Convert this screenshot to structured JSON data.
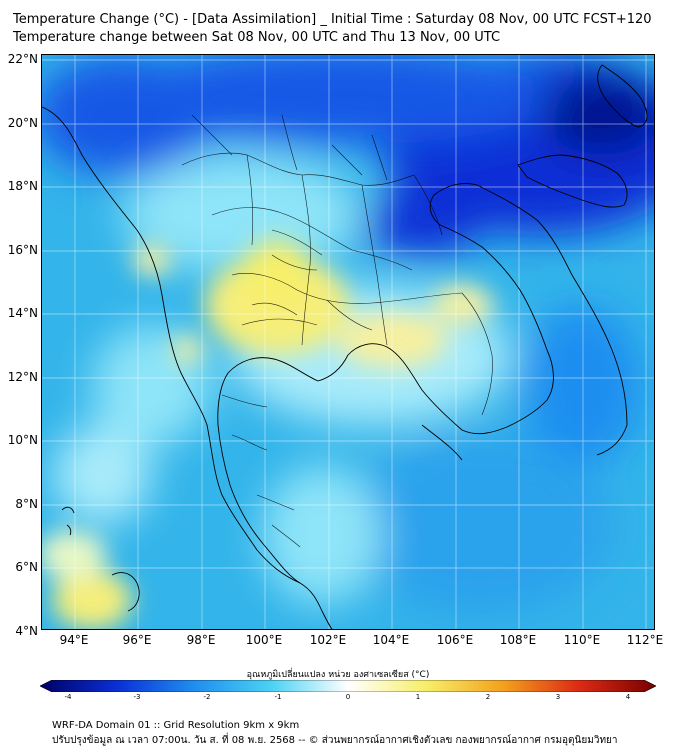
{
  "title_line1": "Temperature Change (°C) - [Data Assimilation] _ Initial Time : Saturday 08 Nov, 00 UTC FCST+120",
  "title_line2": "Temperature change between Sat 08 Nov, 00 UTC and Thu 13 Nov, 00 UTC",
  "lat_labels": [
    "22°N",
    "20°N",
    "18°N",
    "16°N",
    "14°N",
    "12°N",
    "10°N",
    "8°N",
    "6°N",
    "4°N"
  ],
  "lon_labels": [
    "94°E",
    "96°E",
    "98°E",
    "100°E",
    "102°E",
    "104°E",
    "106°E",
    "108°E",
    "110°E",
    "112°E"
  ],
  "colorbar": {
    "title": "อุณหภูมิเปลี่ยนแปลง หน่วย องศาเซลเซียส (°C)",
    "ticks": [
      "-4",
      "-3",
      "-2",
      "-1",
      "0",
      "1",
      "2",
      "3",
      "4"
    ],
    "colors": [
      "#000064",
      "#0a2fd6",
      "#1f8ef0",
      "#4ad2f4",
      "#ffffff",
      "#f7ef6a",
      "#f4a21e",
      "#dc2a14",
      "#780000"
    ]
  },
  "footer_line1": "WRF-DA Domain 01 :: Grid Resolution 9km x 9km",
  "footer_line2": "ปรับปรุงข้อมูล ณ เวลา 07:00น. วัน ส. ที่ 08 พ.ย. 2568 -- © ส่วนพยากรณ์อากาศเชิงตัวเลข กองพยากรณ์อากาศ กรมอุตุนิยมวิทยา"
}
